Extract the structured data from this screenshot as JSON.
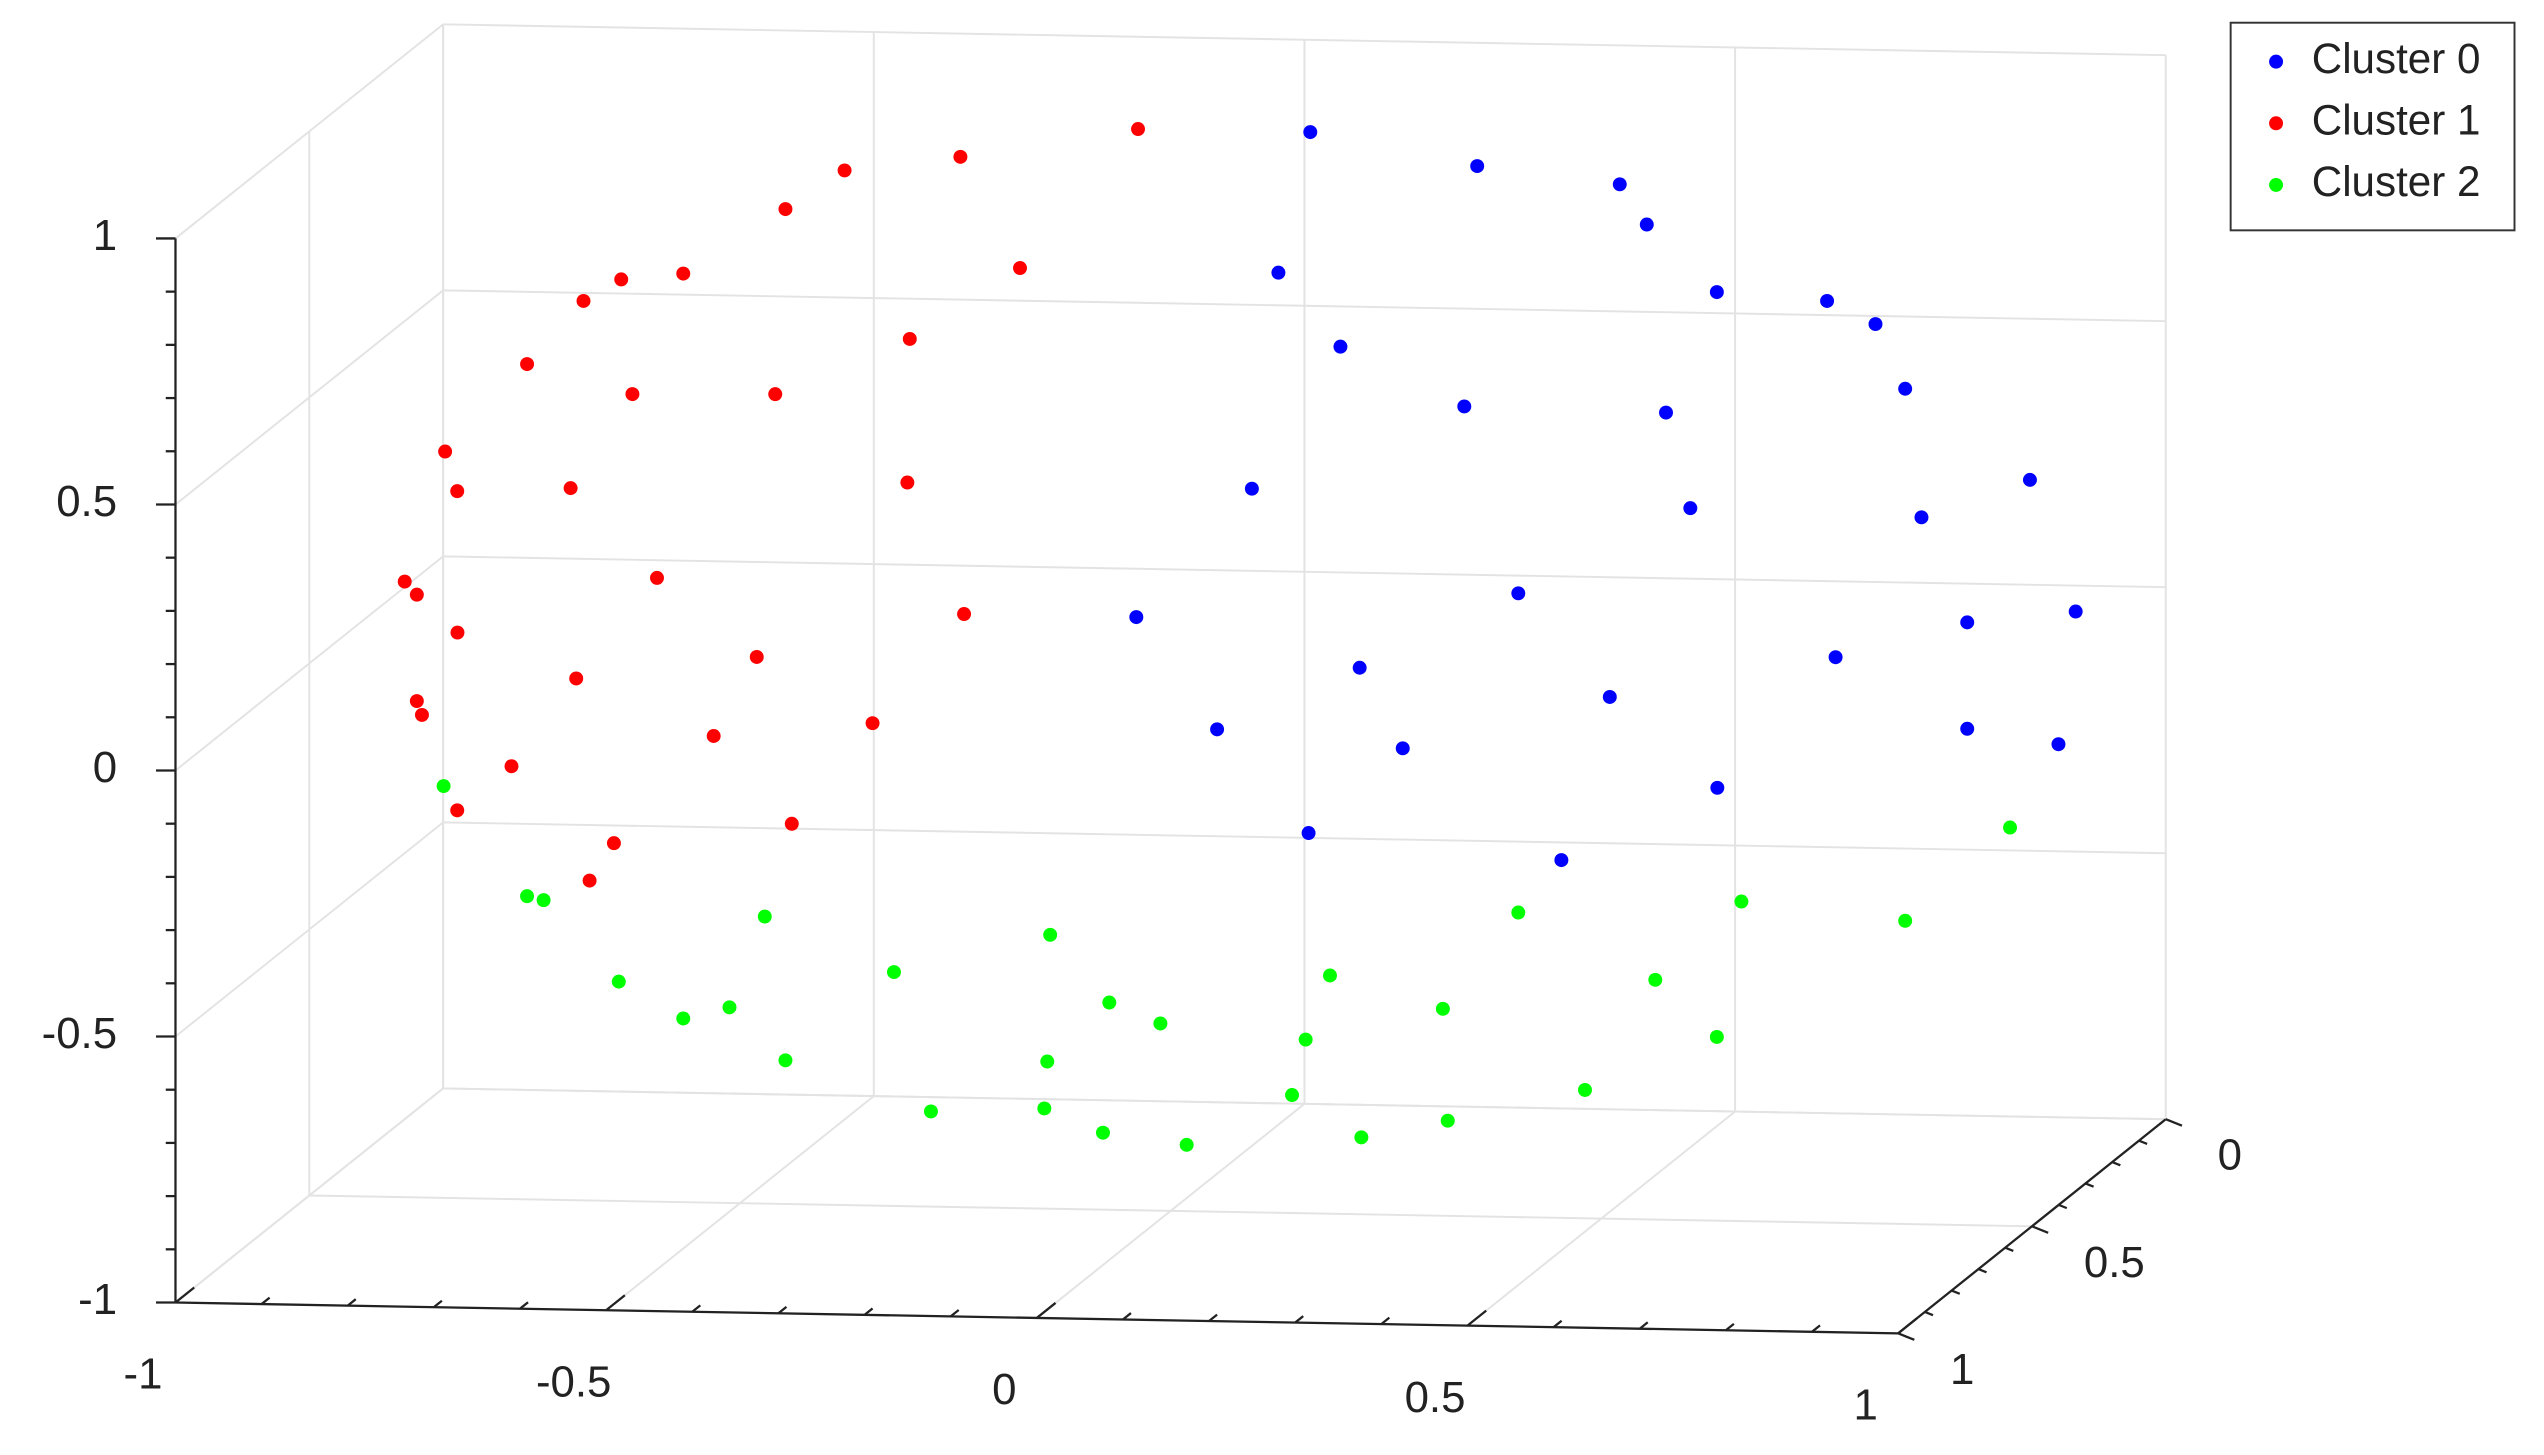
{
  "chart_data": {
    "type": "scatter3d",
    "series": [
      {
        "name": "Cluster 0",
        "color": "#0000ff",
        "x": [
          0.9,
          0.8,
          0.6,
          0.3,
          0.1,
          0.5,
          0.7,
          0.95,
          0.4,
          0.2,
          0.85,
          0.6,
          0.35,
          0.15,
          0.5,
          0.75,
          0.92,
          0.55,
          0.3,
          0.1,
          0.65,
          0.45,
          0.25,
          0.8,
          0.97,
          0.7,
          0.4,
          0.2,
          0.6,
          0.9
        ],
        "y": [
          0.42,
          0.33,
          0.39,
          0.32,
          0.3,
          0.81,
          0.71,
          0.24,
          0.69,
          0.84,
          0.43,
          0.79,
          0.92,
          0.58,
          0.33,
          0.28,
          0.25,
          0.81,
          0.95,
          0.95,
          0.65,
          0.27,
          0.67,
          0.59,
          0.24,
          0.3,
          0.92,
          0.97,
          0.58,
          0.42
        ],
        "z": [
          0.1,
          0.5,
          0.7,
          0.9,
          0.95,
          0.3,
          -0.1,
          -0.2,
          0.6,
          0.5,
          0.3,
          0.1,
          0.2,
          0.8,
          0.8,
          0.6,
          0.3,
          -0.2,
          -0.1,
          0.3,
          0.4,
          0.85,
          0.7,
          0.1,
          0.05,
          0.65,
          0.05,
          0.1,
          0.55,
          -0.1
        ]
      },
      {
        "name": "Cluster 1",
        "color": "#ff0000",
        "x": [
          -0.9,
          -0.8,
          -0.6,
          -0.3,
          -0.1,
          -0.5,
          -0.7,
          -0.95,
          -0.4,
          -0.2,
          -0.85,
          -0.6,
          -0.35,
          -0.15,
          -0.5,
          -0.75,
          -0.92,
          -0.55,
          -0.3,
          -0.1,
          -0.65,
          -0.45,
          -0.25,
          -0.8,
          -0.97,
          -0.7,
          -0.4,
          -0.2,
          -0.6,
          -0.9,
          -0.85,
          -0.6
        ],
        "y": [
          0.42,
          0.33,
          0.39,
          0.32,
          0.3,
          0.81,
          0.71,
          0.24,
          0.69,
          0.84,
          0.43,
          0.79,
          0.92,
          0.58,
          0.33,
          0.28,
          0.25,
          0.81,
          0.95,
          0.95,
          0.65,
          0.27,
          0.67,
          0.59,
          0.24,
          0.3,
          0.92,
          0.97,
          0.58,
          0.42,
          0.43,
          0.74
        ],
        "z": [
          0.1,
          0.5,
          0.7,
          0.9,
          0.95,
          0.3,
          -0.1,
          -0.2,
          0.6,
          0.5,
          0.3,
          0.1,
          0.2,
          0.8,
          0.8,
          0.6,
          0.3,
          -0.2,
          -0.1,
          0.3,
          0.4,
          0.85,
          0.7,
          0.1,
          0.05,
          0.65,
          0.05,
          0.1,
          0.55,
          -0.1,
          -0.3,
          -0.3
        ]
      },
      {
        "name": "Cluster 2",
        "color": "#00ff00",
        "x": [
          0,
          0.3,
          -0.3,
          0.6,
          -0.6,
          0.8,
          -0.8,
          0.1,
          -0.2,
          0.4,
          -0.45,
          0.2,
          -0.1,
          0.7,
          -0.7,
          0,
          0.5,
          -0.35,
          0.15,
          -0.15,
          0.45,
          -0.5,
          0.9,
          -0.9,
          0.3,
          -0.05,
          0.6,
          -0.65,
          0.25,
          0.05
        ],
        "y": [
          0.44,
          0.43,
          0.43,
          0.39,
          0.39,
          0.33,
          0.33,
          0.86,
          0.89,
          0.77,
          0.7,
          0.69,
          0.65,
          0.62,
          0.59,
          0.95,
          0.81,
          0.89,
          0.27,
          0.27,
          0.4,
          0.33,
          0.26,
          0.32,
          0.87,
          0.8,
          0.62,
          0.47,
          0.8,
          0.89
        ],
        "z": [
          -0.9,
          -0.85,
          -0.85,
          -0.7,
          -0.7,
          -0.5,
          -0.5,
          -0.5,
          -0.4,
          -0.5,
          -0.55,
          -0.7,
          -0.75,
          -0.35,
          -0.4,
          -0.3,
          -0.3,
          -0.3,
          -0.95,
          -0.95,
          -0.8,
          -0.8,
          -0.35,
          -0.3,
          -0.4,
          -0.6,
          -0.5,
          -0.6,
          -0.55,
          -0.45
        ]
      }
    ],
    "xlim": [
      -1,
      1
    ],
    "xticks": [
      -1,
      -0.5,
      0,
      0.5,
      1
    ],
    "ylim": [
      0,
      1
    ],
    "yticks": [
      0,
      0.5,
      1
    ],
    "zlim": [
      -1,
      1
    ],
    "zticks": [
      -1,
      -0.5,
      0,
      0.5,
      1
    ],
    "grid": true,
    "legend": "upper right"
  }
}
